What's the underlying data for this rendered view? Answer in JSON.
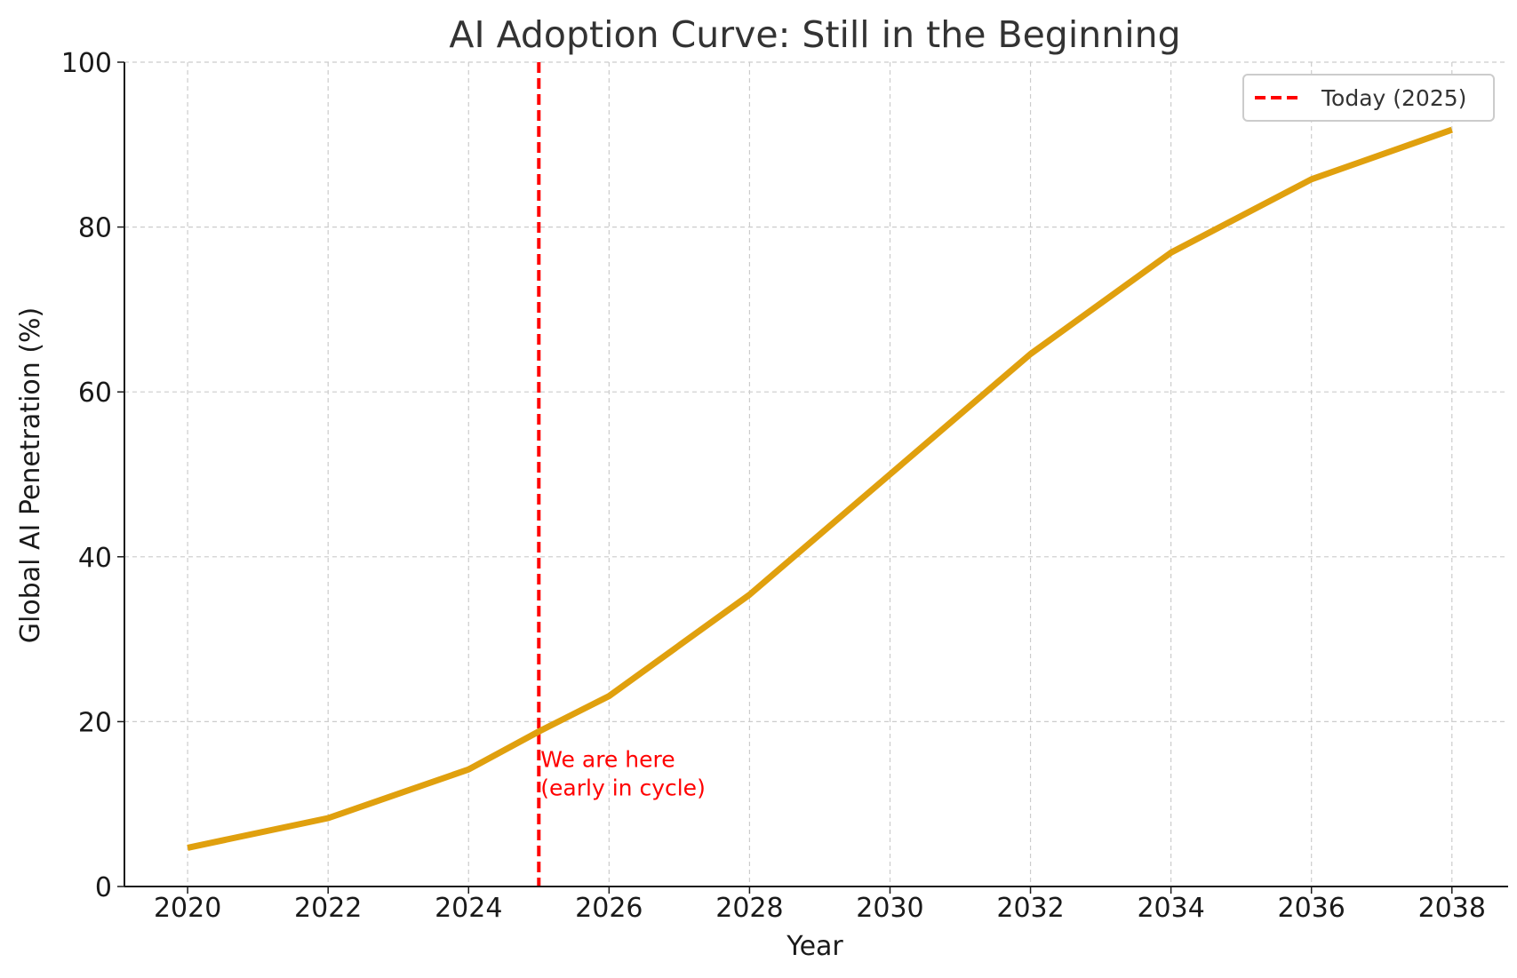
{
  "chart_data": {
    "type": "line",
    "title": "AI Adoption Curve: Still in the Beginning",
    "xlabel": "Year",
    "ylabel": "Global AI Penetration (%)",
    "xlim": [
      2019.1,
      2038.8
    ],
    "ylim": [
      0,
      100
    ],
    "x_ticks": [
      "2020",
      "2022",
      "2024",
      "2026",
      "2028",
      "2030",
      "2032",
      "2034",
      "2036",
      "2038"
    ],
    "y_ticks": [
      "0",
      "20",
      "40",
      "60",
      "80",
      "100"
    ],
    "grid": true,
    "legend_position": "top-right",
    "series": [
      {
        "x": [
          2020,
          2022,
          2024,
          2025,
          2026,
          2028,
          2030,
          2032,
          2034,
          2036,
          2038
        ],
        "y": [
          4.7,
          8.3,
          14.2,
          18.8,
          23.1,
          35.4,
          50.0,
          64.6,
          76.9,
          85.8,
          91.8
        ],
        "color": "#e0a00e"
      }
    ],
    "reference_line": {
      "x": 2025,
      "label": "Today (2025)",
      "color": "#ff0000",
      "style": "dashed"
    },
    "annotation": {
      "lines": [
        "We are here",
        "(early in cycle)"
      ],
      "x": 2025,
      "y": 14.5,
      "color": "#ff0000"
    }
  }
}
